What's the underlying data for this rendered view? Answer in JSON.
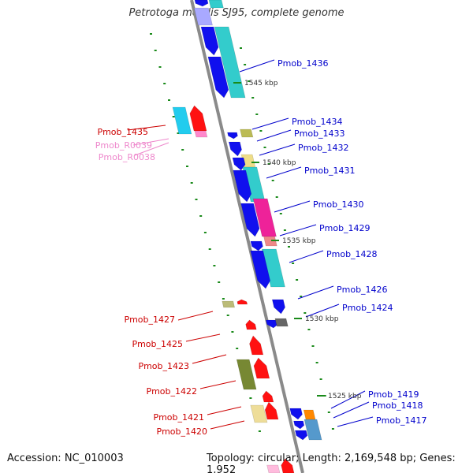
{
  "title": "Petrotoga mobilis SJ95, complete genome",
  "footer": {
    "accession": "Accession: NC_010003",
    "topology": "Topology: circular; Length: 2,169,548 bp; Genes: 1,952"
  },
  "colors": {
    "backbone": "#8a8a8a",
    "tick": "#1a8a1a",
    "forward_label": "#0000cc",
    "reverse_label": "#cc0000",
    "rna_label": "#ee88cc"
  },
  "ticks": [
    "1545 kbp",
    "1540 kbp",
    "1535 kbp",
    "1530 kbp",
    "1525 kbp"
  ],
  "forward_labels": [
    "Pmob_1436",
    "Pmob_1434",
    "Pmob_1433",
    "Pmob_1432",
    "Pmob_1431",
    "Pmob_1430",
    "Pmob_1429",
    "Pmob_1428",
    "Pmob_1426",
    "Pmob_1424",
    "Pmob_1419",
    "Pmob_1418",
    "Pmob_1417"
  ],
  "reverse_labels": [
    "Pmob_1435",
    "Pmob_R0039",
    "Pmob_R0038",
    "Pmob_1427",
    "Pmob_1425",
    "Pmob_1423",
    "Pmob_1422",
    "Pmob_1421",
    "Pmob_1420"
  ]
}
